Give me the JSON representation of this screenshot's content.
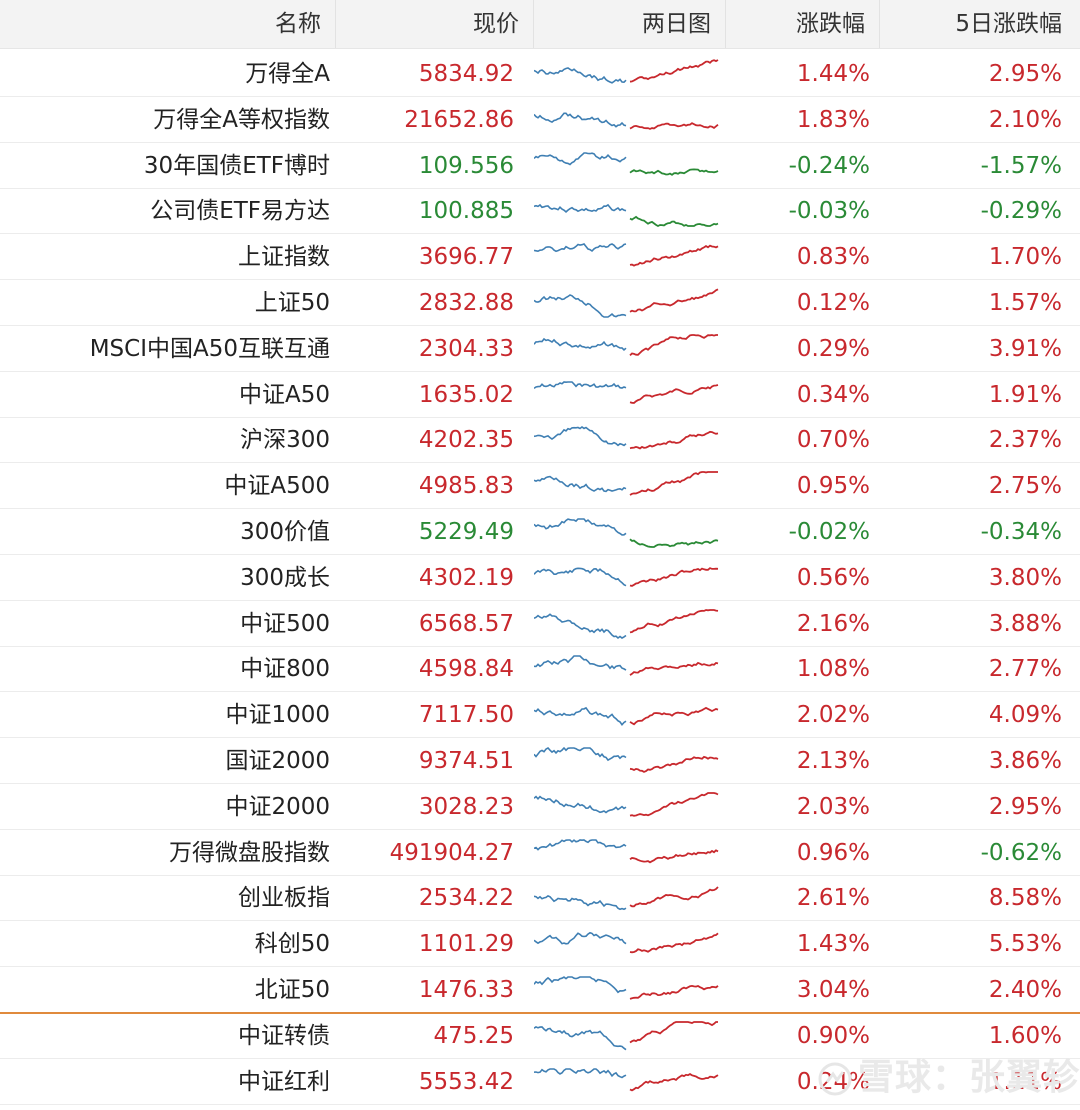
{
  "header": {
    "name": "名称",
    "price": "现价",
    "chart": "两日图",
    "change": "涨跌幅",
    "change5d": "5日涨跌幅"
  },
  "colors": {
    "up": "#c8282d",
    "down": "#2a8a36",
    "prev_day_line": "#3f7fb3",
    "divider": "#e08a3c"
  },
  "rows": [
    {
      "name": "万得全A",
      "price": "5834.92",
      "chg": "1.44%",
      "chg5": "2.95%"
    },
    {
      "name": "万得全A等权指数",
      "price": "21652.86",
      "chg": "1.83%",
      "chg5": "2.10%"
    },
    {
      "name": "30年国债ETF博时",
      "price": "109.556",
      "chg": "-0.24%",
      "chg5": "-1.57%"
    },
    {
      "name": "公司债ETF易方达",
      "price": "100.885",
      "chg": "-0.03%",
      "chg5": "-0.29%"
    },
    {
      "name": "上证指数",
      "price": "3696.77",
      "chg": "0.83%",
      "chg5": "1.70%"
    },
    {
      "name": "上证50",
      "price": "2832.88",
      "chg": "0.12%",
      "chg5": "1.57%"
    },
    {
      "name": "MSCI中国A50互联互通",
      "price": "2304.33",
      "chg": "0.29%",
      "chg5": "3.91%"
    },
    {
      "name": "中证A50",
      "price": "1635.02",
      "chg": "0.34%",
      "chg5": "1.91%"
    },
    {
      "name": "沪深300",
      "price": "4202.35",
      "chg": "0.70%",
      "chg5": "2.37%"
    },
    {
      "name": "中证A500",
      "price": "4985.83",
      "chg": "0.95%",
      "chg5": "2.75%"
    },
    {
      "name": "300价值",
      "price": "5229.49",
      "chg": "-0.02%",
      "chg5": "-0.34%"
    },
    {
      "name": "300成长",
      "price": "4302.19",
      "chg": "0.56%",
      "chg5": "3.80%"
    },
    {
      "name": "中证500",
      "price": "6568.57",
      "chg": "2.16%",
      "chg5": "3.88%"
    },
    {
      "name": "中证800",
      "price": "4598.84",
      "chg": "1.08%",
      "chg5": "2.77%"
    },
    {
      "name": "中证1000",
      "price": "7117.50",
      "chg": "2.02%",
      "chg5": "4.09%"
    },
    {
      "name": "国证2000",
      "price": "9374.51",
      "chg": "2.13%",
      "chg5": "3.86%"
    },
    {
      "name": "中证2000",
      "price": "3028.23",
      "chg": "2.03%",
      "chg5": "2.95%"
    },
    {
      "name": "万得微盘股指数",
      "price": "491904.27",
      "chg": "0.96%",
      "chg5": "-0.62%"
    },
    {
      "name": "创业板指",
      "price": "2534.22",
      "chg": "2.61%",
      "chg5": "8.58%"
    },
    {
      "name": "科创50",
      "price": "1101.29",
      "chg": "1.43%",
      "chg5": "5.53%"
    },
    {
      "name": "北证50",
      "price": "1476.33",
      "chg": "3.04%",
      "chg5": "2.40%"
    },
    {
      "name": "中证转债",
      "price": "475.25",
      "chg": "0.90%",
      "chg5": "1.60%"
    },
    {
      "name": "中证红利",
      "price": "5553.42",
      "chg": "0.24%",
      "chg5": "1.11%"
    }
  ],
  "watermark": "雪球：张翼轸"
}
